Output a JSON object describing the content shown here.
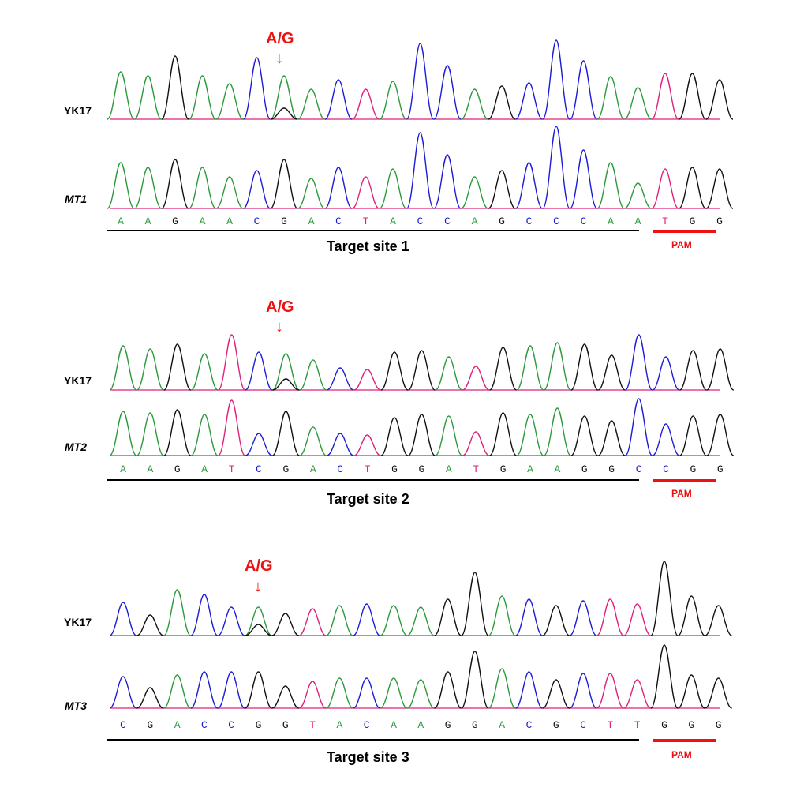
{
  "colors": {
    "A": "#2a9a3a",
    "C": "#1c1cd6",
    "G": "#111111",
    "T": "#e0207a",
    "accent": "#ee1111"
  },
  "panels": [
    {
      "sample1": "YK17",
      "sample2": "MT1",
      "mutation": "A/G",
      "sequence": "AAGAACGACTACCAGCCCAA",
      "pam": "TGG",
      "site": "Target site 1",
      "pam_label": "PAM"
    },
    {
      "sample1": "YK17",
      "sample2": "MT2",
      "mutation": "A/G",
      "sequence": "AAGATCGACTGGATGAAGGC",
      "pam": "CGG",
      "site": "Target site 2",
      "pam_label": "PAM"
    },
    {
      "sample1": "YK17",
      "sample2": "MT3",
      "mutation": "A/G",
      "sequence": "CGACCGGTACAAGGACGCTT",
      "pam": "GGG",
      "site": "Target site 3",
      "pam_label": "PAM"
    }
  ]
}
